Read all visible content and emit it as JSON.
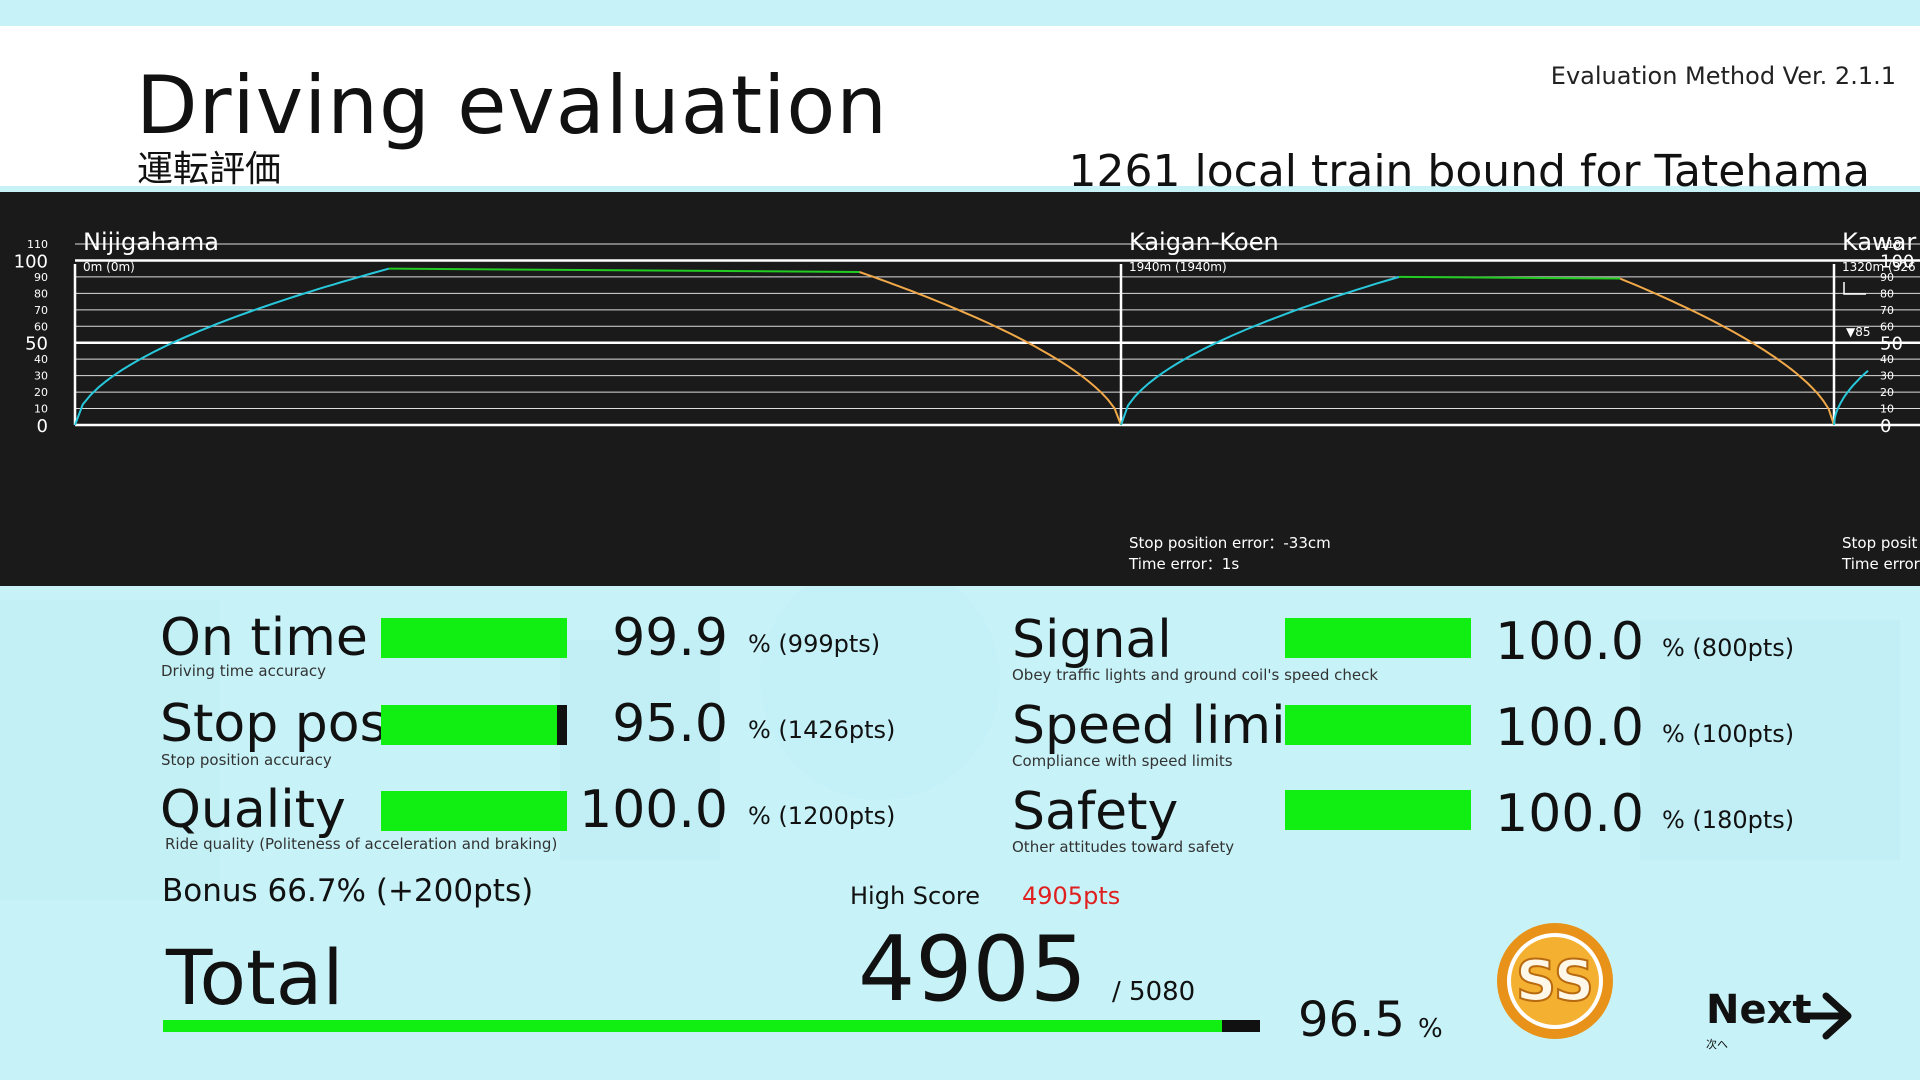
{
  "header": {
    "title": "Driving evaluation",
    "title_jp": "運転評価",
    "version": "Evaluation Method  Ver. 2.1.1",
    "train": "1261 local train bound for Tatehama"
  },
  "chart_data": {
    "type": "line",
    "ylim": [
      0,
      110
    ],
    "major_ticks": [
      0,
      50,
      100
    ],
    "minor_ticks": [
      10,
      20,
      30,
      40,
      60,
      70,
      80,
      90,
      110
    ],
    "stations": [
      {
        "name": "Nijigahama",
        "distance": "0m (0m)"
      },
      {
        "name": "Kaigan-Koen",
        "distance": "1940m (1940m)",
        "stop_error": "Stop position error：-33cm",
        "time_error": "Time error：1s"
      },
      {
        "name": "Kawar",
        "distance": "1320m (326",
        "stop_error": "Stop posit",
        "time_error": "Time error"
      }
    ],
    "speed_limit_marker": "▼85",
    "series": [
      {
        "color_accel": "#28c8dc",
        "color_cruise": "#22cc22",
        "color_brake": "#f0a848"
      }
    ],
    "segments": [
      {
        "accel_end_frac": 0.3,
        "cruise_end_frac": 0.75,
        "peak": 95,
        "cruise_end_speed": 93
      },
      {
        "accel_end_frac": 0.39,
        "cruise_end_frac": 0.7,
        "peak": 90,
        "cruise_end_speed": 89
      },
      {
        "accel_end_frac": 1.0,
        "cruise_end_frac": 1.0,
        "peak": 33,
        "cruise_end_speed": 33
      }
    ]
  },
  "scores_left": [
    {
      "name": "On time",
      "desc": "Driving time accuracy",
      "value": "99.9",
      "pts": "% (999pts)",
      "marker": false
    },
    {
      "name": "Stop pos.",
      "desc": "Stop position accuracy",
      "value": "95.0",
      "pts": "% (1426pts)",
      "marker": true
    },
    {
      "name": "Quality",
      "desc": "Ride quality (Politeness of acceleration and braking)",
      "value": "100.0",
      "pts": "% (1200pts)",
      "marker": false
    }
  ],
  "scores_right": [
    {
      "name": "Signal",
      "desc": "Obey traffic lights and ground coil's speed check",
      "value": "100.0",
      "pts": "% (800pts)"
    },
    {
      "name": "Speed limit",
      "desc": "Compliance with speed limits",
      "value": "100.0",
      "pts": "% (100pts)"
    },
    {
      "name": "Safety",
      "desc": "Other attitudes toward safety",
      "value": "100.0",
      "pts": "% (180pts)"
    }
  ],
  "bonus": "Bonus 66.7% (+200pts)",
  "high_score": {
    "label": "High Score",
    "value": "4905pts"
  },
  "total": {
    "label": "Total",
    "value": "4905",
    "max": "/ 5080",
    "percent": "96.5",
    "percent_unit": "%",
    "fraction": 0.965
  },
  "rank": "SS",
  "next": {
    "label": "Next",
    "sub": "次へ"
  },
  "colors": {
    "bar": "#11ee11",
    "background": "#c7f3f8",
    "high_score": "#e02020",
    "rank_ring": "#e8921a"
  }
}
